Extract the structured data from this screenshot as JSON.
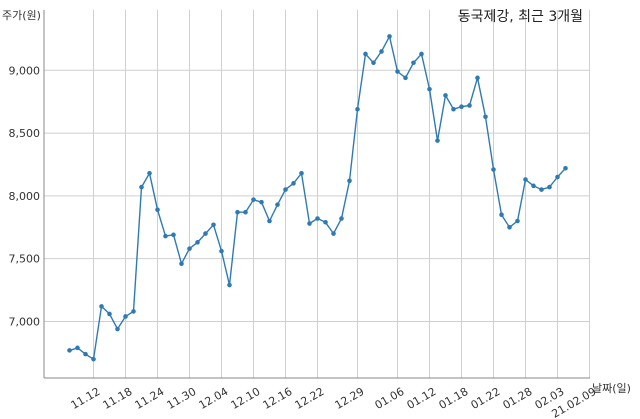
{
  "chart_data": {
    "type": "line",
    "title": "동국제강, 최근 3개월",
    "ylabel": "주가(원)",
    "xlabel": "날짜(일)",
    "ylim": [
      6550,
      9480
    ],
    "yticks": [
      {
        "value": 7000,
        "label": "7,000"
      },
      {
        "value": 7500,
        "label": "7,500"
      },
      {
        "value": 8000,
        "label": "8,000"
      },
      {
        "value": 8500,
        "label": "8,500"
      },
      {
        "value": 9000,
        "label": "9,000"
      }
    ],
    "xticks": [
      {
        "index": 3,
        "label": "11.12"
      },
      {
        "index": 7,
        "label": "11.18"
      },
      {
        "index": 11,
        "label": "11.24"
      },
      {
        "index": 15,
        "label": "11.30"
      },
      {
        "index": 19,
        "label": "12.04"
      },
      {
        "index": 23,
        "label": "12.10"
      },
      {
        "index": 27,
        "label": "12.16"
      },
      {
        "index": 31,
        "label": "12.22"
      },
      {
        "index": 36,
        "label": "12.29"
      },
      {
        "index": 41,
        "label": "01.06"
      },
      {
        "index": 45,
        "label": "01.12"
      },
      {
        "index": 49,
        "label": "01.18"
      },
      {
        "index": 53,
        "label": "01.22"
      },
      {
        "index": 57,
        "label": "01.28"
      },
      {
        "index": 61,
        "label": "02.03"
      },
      {
        "index": 65,
        "label": "21.02.09"
      }
    ],
    "grid": true,
    "line_color": "#2f7ab3",
    "series": [
      {
        "values": [
          6770,
          6790,
          6740,
          6700,
          7120,
          7060,
          6940,
          7040,
          7080,
          8070,
          8180,
          7890,
          7680,
          7690,
          7460,
          7580,
          7630,
          7700,
          7770,
          7560,
          7290,
          7870,
          7870,
          7970,
          7950,
          7800,
          7930,
          8050,
          8100,
          8180,
          7780,
          7820,
          7790,
          7700,
          7820,
          8120,
          8690,
          9130,
          9060,
          9150,
          9270,
          8990,
          8940,
          9060,
          9130,
          8850,
          8440,
          8800,
          8690,
          8710,
          8720,
          8940,
          8630,
          8210,
          7850,
          7750,
          7800,
          8130,
          8080,
          8050,
          8070,
          8150,
          8220
        ]
      }
    ]
  }
}
